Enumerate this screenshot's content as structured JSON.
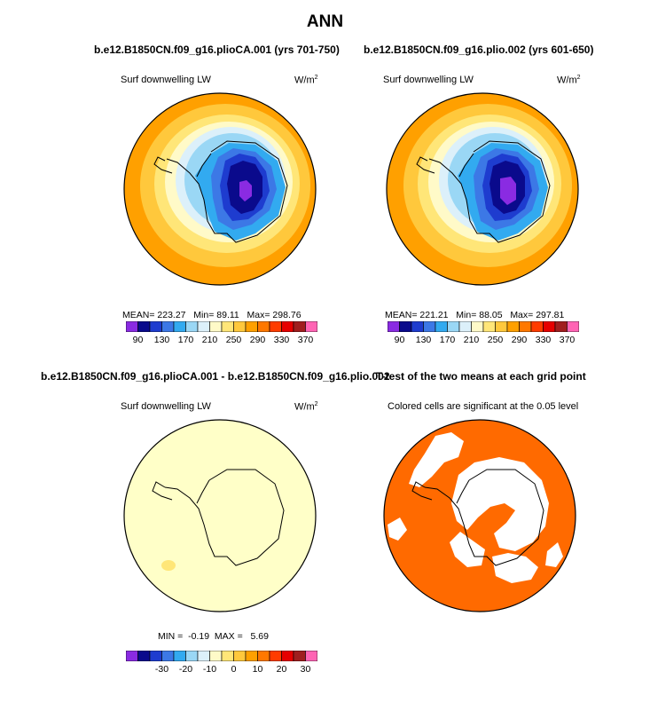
{
  "figure_title": "ANN",
  "panels": {
    "p1": {
      "title": "b.e12.B1850CN.f09_g16.plioCA.001 (yrs 701-750)",
      "variable": "Surf downwelling LW",
      "units": "W/m",
      "units_sup": "2",
      "stats": {
        "mean_label": "MEAN=",
        "mean": "223.27",
        "min_label": "Min=",
        "min": "89.11",
        "max_label": "Max=",
        "max": "298.76"
      }
    },
    "p2": {
      "title": "b.e12.B1850CN.f09_g16.plio.002 (yrs 601-650)",
      "variable": "Surf downwelling LW",
      "units": "W/m",
      "units_sup": "2",
      "stats": {
        "mean_label": "MEAN=",
        "mean": "221.21",
        "min_label": "Min=",
        "min": "88.05",
        "max_label": "Max=",
        "max": "297.81"
      }
    },
    "p3": {
      "title": "b.e12.B1850CN.f09_g16.plioCA.001 - b.e12.B1850CN.f09_g16.plio.002",
      "variable": "Surf downwelling LW",
      "units": "W/m",
      "units_sup": "2",
      "stats": {
        "min_label": "MIN =",
        "min": "-0.19",
        "max_label": "MAX =",
        "max": "5.69"
      }
    },
    "p4": {
      "title": "T-test of the two means at each grid point",
      "subtitle": "Colored cells are significant at the 0.05 level"
    }
  },
  "colorbar_abs": {
    "colors": [
      "#8a2be2",
      "#0a0a8c",
      "#1e3ccf",
      "#3c78e6",
      "#32aaf0",
      "#9ad7f5",
      "#dcf0fa",
      "#fffac8",
      "#ffe678",
      "#ffc83c",
      "#ffa000",
      "#ff7800",
      "#ff3c00",
      "#e60000",
      "#a01e1e",
      "#ff64b4"
    ],
    "labels": [
      "90",
      "130",
      "170",
      "210",
      "250",
      "290",
      "330",
      "370"
    ]
  },
  "colorbar_diff": {
    "colors": [
      "#8a2be2",
      "#0a0a8c",
      "#1e3ccf",
      "#3c78e6",
      "#32aaf0",
      "#9ad7f5",
      "#dcf0fa",
      "#fffac8",
      "#ffe678",
      "#ffc83c",
      "#ffa000",
      "#ff7800",
      "#ff3c00",
      "#e60000",
      "#a01e1e",
      "#ff64b4"
    ],
    "labels": [
      "-30",
      "-20",
      "-10",
      "0",
      "10",
      "20",
      "30"
    ]
  },
  "map_colors": {
    "ocean_rings": [
      "#ffa000",
      "#ffc83c",
      "#ffe678",
      "#fffac8",
      "#dcf0fa",
      "#9ad7f5"
    ],
    "ice_levels": [
      "#32aaf0",
      "#3c78e6",
      "#1e3ccf",
      "#0a0a8c",
      "#8a2be2"
    ],
    "diff_background": "#ffffc8",
    "diff_spot": "#ffe678",
    "significant": "#ff6a00"
  }
}
